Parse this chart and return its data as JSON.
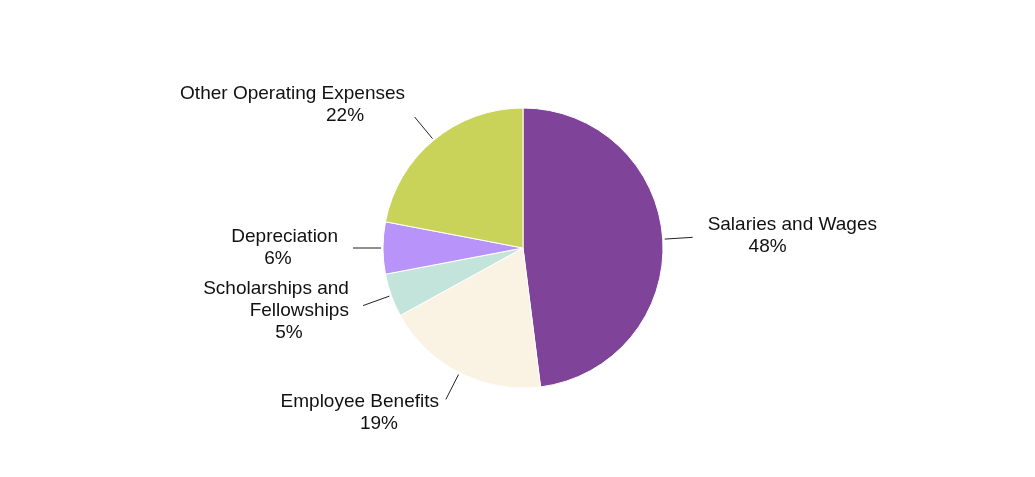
{
  "chart_data": {
    "type": "pie",
    "categories": [
      "Salaries and Wages",
      "Employee Benefits",
      "Scholarships and Fellowships",
      "Depreciation",
      "Other Operating Expenses"
    ],
    "values": [
      48,
      19,
      5,
      6,
      22
    ],
    "value_labels": [
      "48%",
      "19%",
      "5%",
      "6%",
      "22%"
    ],
    "colors": [
      "#7f4399",
      "#faf3e3",
      "#c3e4da",
      "#b894fa",
      "#c9d35a"
    ],
    "legend": false
  }
}
